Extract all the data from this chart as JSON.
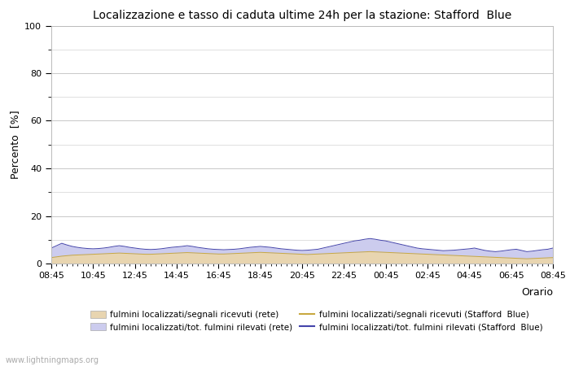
{
  "title": "Localizzazione e tasso di caduta ultime 24h per la stazione: Stafford  Blue",
  "xlabel": "Orario",
  "ylabel": "Percento  [%]",
  "ylim": [
    0,
    100
  ],
  "yticks": [
    0,
    20,
    40,
    60,
    80,
    100
  ],
  "yticks_minor": [
    10,
    30,
    50,
    70,
    90
  ],
  "x_labels": [
    "08:45",
    "10:45",
    "12:45",
    "14:45",
    "16:45",
    "18:45",
    "20:45",
    "22:45",
    "00:45",
    "02:45",
    "04:45",
    "06:45",
    "08:45"
  ],
  "n_points": 97,
  "fill_rete_color": "#e8d5b0",
  "fill_blue_color": "#ccccee",
  "line_rete_color": "#c8a840",
  "line_blue_color": "#4444aa",
  "bg_color": "#ffffff",
  "plot_bg_color": "#ffffff",
  "grid_color": "#c8c8c8",
  "watermark": "www.lightningmaps.org",
  "legend": [
    {
      "label": "fulmini localizzati/segnali ricevuti (rete)",
      "type": "fill",
      "color": "#e8d5b0"
    },
    {
      "label": "fulmini localizzati/segnali ricevuti (Stafford  Blue)",
      "type": "line",
      "color": "#c8a840"
    },
    {
      "label": "fulmini localizzati/tot. fulmini rilevati (rete)",
      "type": "fill",
      "color": "#ccccee"
    },
    {
      "label": "fulmini localizzati/tot. fulmini rilevati (Stafford  Blue)",
      "type": "line",
      "color": "#4444aa"
    }
  ],
  "rete_fill_data": [
    2.5,
    2.8,
    3.1,
    3.3,
    3.5,
    3.6,
    3.7,
    3.8,
    3.9,
    4.0,
    4.1,
    4.2,
    4.3,
    4.4,
    4.3,
    4.2,
    4.1,
    4.0,
    3.9,
    3.9,
    4.0,
    4.1,
    4.2,
    4.3,
    4.4,
    4.5,
    4.6,
    4.5,
    4.4,
    4.3,
    4.2,
    4.1,
    4.0,
    4.0,
    4.1,
    4.2,
    4.3,
    4.4,
    4.5,
    4.6,
    4.7,
    4.6,
    4.5,
    4.4,
    4.3,
    4.2,
    4.1,
    4.0,
    3.9,
    3.8,
    3.9,
    4.0,
    4.1,
    4.2,
    4.3,
    4.4,
    4.5,
    4.6,
    4.7,
    4.8,
    4.9,
    5.0,
    4.9,
    4.8,
    4.7,
    4.6,
    4.5,
    4.4,
    4.3,
    4.2,
    4.1,
    4.0,
    3.9,
    3.8,
    3.7,
    3.6,
    3.5,
    3.4,
    3.3,
    3.2,
    3.1,
    3.0,
    2.9,
    2.8,
    2.7,
    2.6,
    2.5,
    2.4,
    2.3,
    2.2,
    2.1,
    2.0,
    2.1,
    2.2,
    2.3,
    2.4,
    2.5
  ],
  "blue_fill_data": [
    6.5,
    7.5,
    8.5,
    7.8,
    7.2,
    6.8,
    6.5,
    6.3,
    6.2,
    6.3,
    6.5,
    6.8,
    7.2,
    7.5,
    7.2,
    6.8,
    6.5,
    6.2,
    6.0,
    5.9,
    6.0,
    6.2,
    6.5,
    6.8,
    7.0,
    7.2,
    7.5,
    7.2,
    6.8,
    6.5,
    6.2,
    6.0,
    5.9,
    5.8,
    5.9,
    6.0,
    6.2,
    6.5,
    6.8,
    7.0,
    7.2,
    7.0,
    6.8,
    6.5,
    6.2,
    6.0,
    5.8,
    5.6,
    5.5,
    5.6,
    5.8,
    6.0,
    6.5,
    7.0,
    7.5,
    8.0,
    8.5,
    9.0,
    9.5,
    9.8,
    10.2,
    10.5,
    10.2,
    9.8,
    9.5,
    9.0,
    8.5,
    8.0,
    7.5,
    7.0,
    6.5,
    6.2,
    6.0,
    5.8,
    5.6,
    5.4,
    5.5,
    5.6,
    5.8,
    6.0,
    6.2,
    6.5,
    6.0,
    5.5,
    5.2,
    5.0,
    5.2,
    5.5,
    5.8,
    6.0,
    5.5,
    5.0,
    5.2,
    5.5,
    5.8,
    6.0,
    6.5
  ]
}
